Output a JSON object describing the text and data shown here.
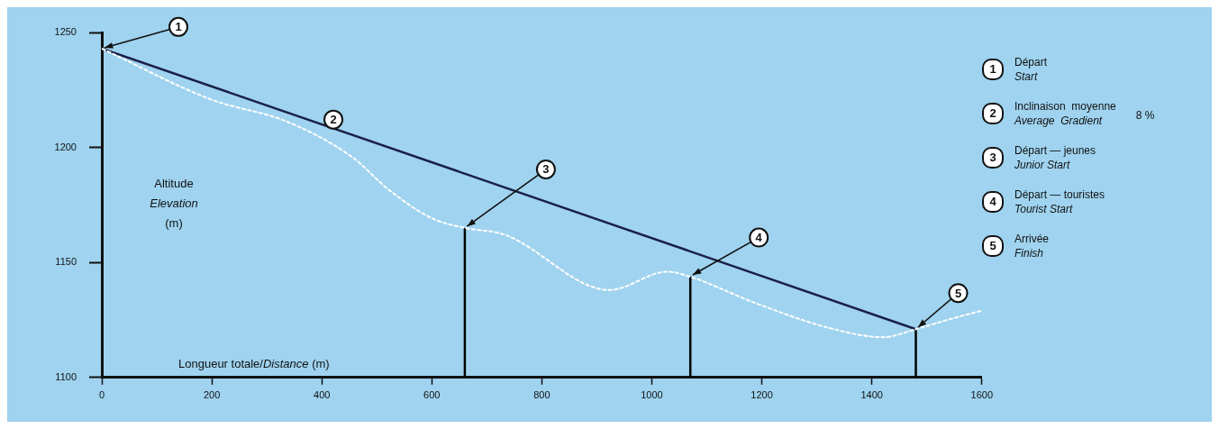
{
  "chart_data": {
    "type": "line",
    "xlabel": "Longueur totale/Distance (m)",
    "ylabel": "Altitude\nElevation\n(m)",
    "xlim": [
      0,
      1600
    ],
    "xticks": [
      0,
      200,
      400,
      600,
      800,
      1000,
      1200,
      1400,
      1600
    ],
    "ylim": [
      1100,
      1250
    ],
    "yticks": [
      1100,
      1150,
      1200,
      1250
    ],
    "grid": false,
    "legend": false,
    "marker": "none",
    "series": [
      {
        "color": "#ffffff",
        "line_style": "dashed",
        "x": [
          0,
          197,
          339,
          454,
          525,
          602,
          661,
          733,
          923,
          1028,
          1067,
          1192,
          1323,
          1421,
          1480,
          1552,
          1600
        ],
        "values": [
          1243,
          1221,
          1211,
          1196,
          1181,
          1169,
          1165,
          1162,
          1138,
          1146,
          1144,
          1132,
          1121.5,
          1117.5,
          1121,
          1126,
          1129
        ]
      },
      {
        "color": "#1a1f45",
        "line_style": "solid",
        "x": [
          0,
          1480
        ],
        "values": [
          1243,
          1121
        ]
      },
      {
        "color": "#000000",
        "line_style": "solid",
        "x": [
          660,
          660
        ],
        "values": [
          1100,
          1165
        ]
      },
      {
        "color": "#000000",
        "line_style": "solid",
        "x": [
          1070,
          1070
        ],
        "values": [
          1100,
          1144
        ]
      },
      {
        "color": "#000000",
        "line_style": "solid",
        "x": [
          1480,
          1480
        ],
        "values": [
          1100,
          1121
        ]
      }
    ],
    "annotations": [
      {
        "text": "1",
        "x": 0,
        "y": 1243
      },
      {
        "text": "2",
        "x": 421,
        "y": 1209
      },
      {
        "text": "3",
        "x": 660,
        "y": 1165
      },
      {
        "text": "4",
        "x": 1070,
        "y": 1144
      },
      {
        "text": "5",
        "x": 1480,
        "y": 1121
      },
      "Départ",
      "Start",
      "Inclinaison  moyenne",
      "Average  Gradient",
      "Départ — jeunes",
      "Junior Start",
      "Départ — touristes",
      "Tourist Start",
      "Arrivée",
      "Finish",
      "8 %"
    ]
  }
}
